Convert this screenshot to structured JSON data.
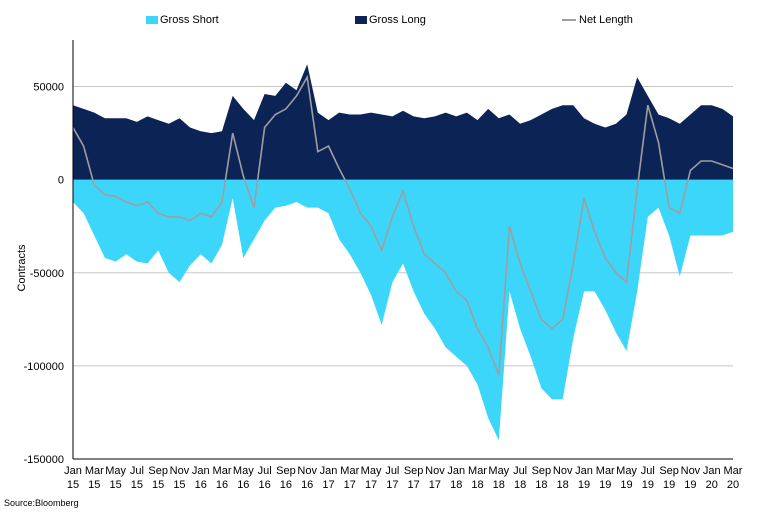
{
  "chart_data": {
    "type": "area",
    "title": "",
    "ylabel": "Contracts",
    "xlabel": "",
    "ylim": [
      -150000,
      75000
    ],
    "yticks": [
      -150000,
      -100000,
      -50000,
      0,
      50000
    ],
    "ytick_labels": [
      "-150000",
      "-100000",
      "-50000",
      "0",
      "50000"
    ],
    "xlim": [
      0,
      31
    ],
    "xticks": [
      {
        "month": "Jan",
        "year": "15"
      },
      {
        "month": "Mar",
        "year": "15"
      },
      {
        "month": "May",
        "year": "15"
      },
      {
        "month": "Jul",
        "year": "15"
      },
      {
        "month": "Sep",
        "year": "15"
      },
      {
        "month": "Nov",
        "year": "15"
      },
      {
        "month": "Jan",
        "year": "16"
      },
      {
        "month": "Mar",
        "year": "16"
      },
      {
        "month": "May",
        "year": "16"
      },
      {
        "month": "Jul",
        "year": "16"
      },
      {
        "month": "Sep",
        "year": "16"
      },
      {
        "month": "Nov",
        "year": "16"
      },
      {
        "month": "Jan",
        "year": "17"
      },
      {
        "month": "Mar",
        "year": "17"
      },
      {
        "month": "May",
        "year": "17"
      },
      {
        "month": "Jul",
        "year": "17"
      },
      {
        "month": "Sep",
        "year": "17"
      },
      {
        "month": "Nov",
        "year": "17"
      },
      {
        "month": "Jan",
        "year": "18"
      },
      {
        "month": "Mar",
        "year": "18"
      },
      {
        "month": "May",
        "year": "18"
      },
      {
        "month": "Jul",
        "year": "18"
      },
      {
        "month": "Sep",
        "year": "18"
      },
      {
        "month": "Nov",
        "year": "18"
      },
      {
        "month": "Jan",
        "year": "19"
      },
      {
        "month": "Mar",
        "year": "19"
      },
      {
        "month": "May",
        "year": "19"
      },
      {
        "month": "Jul",
        "year": "19"
      },
      {
        "month": "Sep",
        "year": "19"
      },
      {
        "month": "Nov",
        "year": "19"
      },
      {
        "month": "Jan",
        "year": "20"
      },
      {
        "month": "Mar",
        "year": "20"
      }
    ],
    "legend_position": "top",
    "grid": "horizontal",
    "x": [
      0,
      0.5,
      1,
      1.5,
      2,
      2.5,
      3,
      3.5,
      4,
      4.5,
      5,
      5.5,
      6,
      6.5,
      7,
      7.5,
      8,
      8.5,
      9,
      9.5,
      10,
      10.5,
      11,
      11.5,
      12,
      12.5,
      13,
      13.5,
      14,
      14.5,
      15,
      15.5,
      16,
      16.5,
      17,
      17.5,
      18,
      18.5,
      19,
      19.5,
      20,
      20.5,
      21,
      21.5,
      22,
      22.5,
      23,
      23.5,
      24,
      24.5,
      25,
      25.5,
      26,
      26.5,
      27,
      27.5,
      28,
      28.5,
      29,
      29.5,
      30,
      30.5,
      31
    ],
    "series": [
      {
        "name": "Gross Short",
        "color": "#3dd6fb",
        "values": [
          -12000,
          -18000,
          -30000,
          -42000,
          -44000,
          -40000,
          -44000,
          -45000,
          -38000,
          -50000,
          -55000,
          -46000,
          -40000,
          -45000,
          -35000,
          -10000,
          -42000,
          -32000,
          -22000,
          -15000,
          -14000,
          -12000,
          -15000,
          -15000,
          -18000,
          -32000,
          -40000,
          -50000,
          -62000,
          -78000,
          -55000,
          -45000,
          -60000,
          -72000,
          -80000,
          -90000,
          -95000,
          -100000,
          -110000,
          -128000,
          -140000,
          -60000,
          -80000,
          -95000,
          -112000,
          -118000,
          -118000,
          -85000,
          -60000,
          -60000,
          -70000,
          -82000,
          -92000,
          -60000,
          -20000,
          -15000,
          -30000,
          -52000,
          -30000,
          -30000,
          -30000,
          -30000,
          -28000
        ]
      },
      {
        "name": "Gross Long",
        "color": "#0c2356",
        "values": [
          40000,
          38000,
          36000,
          33000,
          33000,
          33000,
          31000,
          34000,
          32000,
          30000,
          33000,
          28000,
          26000,
          25000,
          26000,
          45000,
          38000,
          32000,
          46000,
          45000,
          52000,
          48000,
          62000,
          36000,
          32000,
          36000,
          35000,
          35000,
          36000,
          35000,
          34000,
          37000,
          34000,
          33000,
          34000,
          36000,
          34000,
          36000,
          32000,
          38000,
          33000,
          35000,
          30000,
          32000,
          35000,
          38000,
          40000,
          40000,
          33000,
          30000,
          28000,
          30000,
          35000,
          55000,
          45000,
          35000,
          33000,
          30000,
          35000,
          40000,
          40000,
          38000,
          34000
        ]
      },
      {
        "name": "Net Length",
        "color": "#9e9e9e",
        "values": [
          28000,
          18000,
          -3000,
          -8000,
          -9000,
          -12000,
          -14000,
          -12000,
          -18000,
          -20000,
          -20000,
          -22000,
          -18000,
          -20000,
          -12000,
          25000,
          2000,
          -15000,
          28000,
          35000,
          38000,
          45000,
          55000,
          15000,
          18000,
          6000,
          -5000,
          -18000,
          -25000,
          -38000,
          -20000,
          -6000,
          -25000,
          -40000,
          -45000,
          -50000,
          -60000,
          -65000,
          -80000,
          -90000,
          -105000,
          -25000,
          -45000,
          -60000,
          -75000,
          -80000,
          -75000,
          -45000,
          -10000,
          -28000,
          -42000,
          -50000,
          -55000,
          -5000,
          40000,
          20000,
          -15000,
          -18000,
          5000,
          10000,
          10000,
          8000,
          6000
        ]
      }
    ]
  },
  "source": "Source:Bloomberg"
}
